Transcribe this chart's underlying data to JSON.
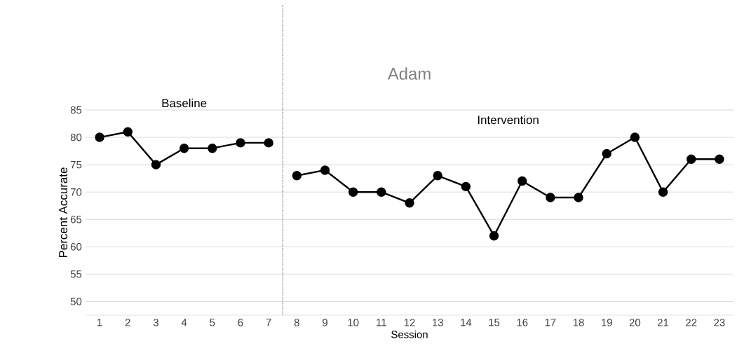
{
  "chart_data": {
    "type": "line",
    "title": "Adam",
    "xlabel": "Session",
    "ylabel": "Percent Accurate",
    "series": [
      {
        "color": "#000000",
        "x": [
          1,
          2,
          3,
          4,
          5,
          6,
          7
        ],
        "values": [
          80,
          81,
          75,
          78,
          78,
          79,
          79
        ]
      },
      {
        "color": "#000000",
        "x": [
          8,
          9,
          10,
          11,
          12,
          13,
          14,
          15,
          16,
          17,
          18,
          19,
          20,
          21,
          22,
          23
        ],
        "values": [
          73,
          74,
          70,
          70,
          68,
          73,
          71,
          62,
          72,
          69,
          69,
          77,
          80,
          70,
          76,
          76
        ]
      }
    ],
    "xlim": [
      0.5,
      23.5
    ],
    "ylim": [
      47.5,
      85
    ],
    "xticks": [
      1,
      2,
      3,
      4,
      5,
      6,
      7,
      8,
      9,
      10,
      11,
      12,
      13,
      14,
      15,
      16,
      17,
      18,
      19,
      20,
      21,
      22,
      23
    ],
    "yticks": [
      50,
      55,
      60,
      65,
      70,
      75,
      80,
      85
    ],
    "grid": "y",
    "marker": "circle",
    "line_style": "solid",
    "ref_lines": [
      {
        "axis": "x",
        "value": 7.5,
        "line_style": "dotted",
        "color": "#000000"
      }
    ],
    "annotations": [
      "Baseline",
      "Intervention"
    ]
  }
}
